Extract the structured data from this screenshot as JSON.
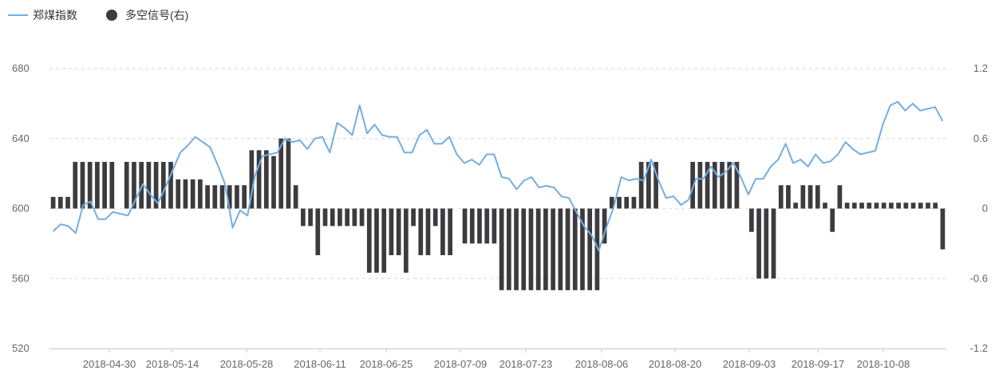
{
  "chart_data": {
    "type": "bar+line",
    "legend": [
      {
        "name": "郑煤指数",
        "style": "line",
        "color": "#74aee0"
      },
      {
        "name": "多空信号(右)",
        "style": "dot",
        "color": "#3c3c3f"
      }
    ],
    "left_axis": {
      "ticks": [
        "680",
        "640",
        "600",
        "560",
        "520"
      ],
      "min": 520,
      "max": 680
    },
    "right_axis": {
      "ticks": [
        "1.2",
        "0.6",
        "0",
        "-0.6",
        "-1.2"
      ],
      "min": -1.2,
      "max": 1.2
    },
    "x_labels": [
      "2018-04-30",
      "2018-05-14",
      "2018-05-28",
      "2018-06-11",
      "2018-06-25",
      "2018-07-09",
      "2018-07-23",
      "2018-08-06",
      "2018-08-20",
      "2018-09-03",
      "2018-09-17",
      "2018-10-08"
    ],
    "grid": "horizontal-dashed",
    "series": [
      {
        "name": "郑煤指数",
        "type": "line",
        "axis": "left",
        "color": "#74aee0",
        "values": [
          587,
          591,
          590,
          586,
          602,
          604,
          594,
          594,
          598,
          597,
          596,
          605,
          614,
          608,
          603,
          612,
          622,
          632,
          636,
          641,
          638,
          635,
          625,
          614,
          589,
          599,
          596,
          619,
          630,
          631,
          632,
          640,
          638,
          639,
          634,
          640,
          641,
          632,
          649,
          646,
          642,
          659,
          643,
          648,
          642,
          641,
          641,
          632,
          632,
          642,
          645,
          637,
          637,
          641,
          631,
          626,
          628,
          625,
          631,
          631,
          618,
          617,
          611,
          616,
          618,
          612,
          613,
          612,
          607,
          606,
          598,
          590,
          585,
          576,
          589,
          601,
          618,
          616,
          617,
          616,
          628,
          616,
          606,
          607,
          602,
          605,
          617,
          617,
          624,
          618,
          621,
          626,
          618,
          608,
          617,
          617,
          624,
          628,
          637,
          626,
          628,
          624,
          631,
          626,
          627,
          631,
          638,
          634,
          631,
          632,
          633,
          648,
          659,
          661,
          656,
          660,
          656,
          657,
          658,
          650
        ]
      },
      {
        "name": "多空信号(右)",
        "type": "bar",
        "axis": "right",
        "color": "#3c3c3f",
        "values": [
          0.1,
          0.1,
          0.1,
          0.4,
          0.4,
          0.4,
          0.4,
          0.4,
          0.4,
          0,
          0.4,
          0.4,
          0.4,
          0.4,
          0.4,
          0.4,
          0.4,
          0.25,
          0.25,
          0.25,
          0.25,
          0.2,
          0.2,
          0.2,
          0.2,
          0.2,
          0.2,
          0.5,
          0.5,
          0.5,
          0.45,
          0.6,
          0.6,
          0.2,
          -0.15,
          -0.15,
          -0.4,
          -0.15,
          -0.15,
          -0.15,
          -0.15,
          -0.15,
          -0.15,
          -0.55,
          -0.55,
          -0.55,
          -0.4,
          -0.4,
          -0.55,
          -0.15,
          -0.4,
          -0.4,
          -0.15,
          -0.4,
          -0.4,
          0,
          -0.3,
          -0.3,
          -0.3,
          -0.3,
          -0.3,
          -0.7,
          -0.7,
          -0.7,
          -0.7,
          -0.7,
          -0.7,
          -0.7,
          -0.7,
          -0.7,
          -0.7,
          -0.7,
          -0.7,
          -0.7,
          -0.7,
          -0.3,
          0.1,
          0.1,
          0.1,
          0.1,
          0.4,
          0.4,
          0.4,
          0,
          0,
          0,
          0,
          0.4,
          0.4,
          0.4,
          0.4,
          0.4,
          0.4,
          0.4,
          0,
          -0.2,
          -0.6,
          -0.6,
          -0.6,
          0.2,
          0.2,
          0.05,
          0.2,
          0.2,
          0.2,
          0.05,
          -0.2,
          0.2,
          0.05,
          0.05,
          0.05,
          0.05,
          0.05,
          0.05,
          0.05,
          0.05,
          0.05,
          0.05,
          0.05,
          0.05,
          0.05,
          -0.35
        ]
      }
    ]
  }
}
